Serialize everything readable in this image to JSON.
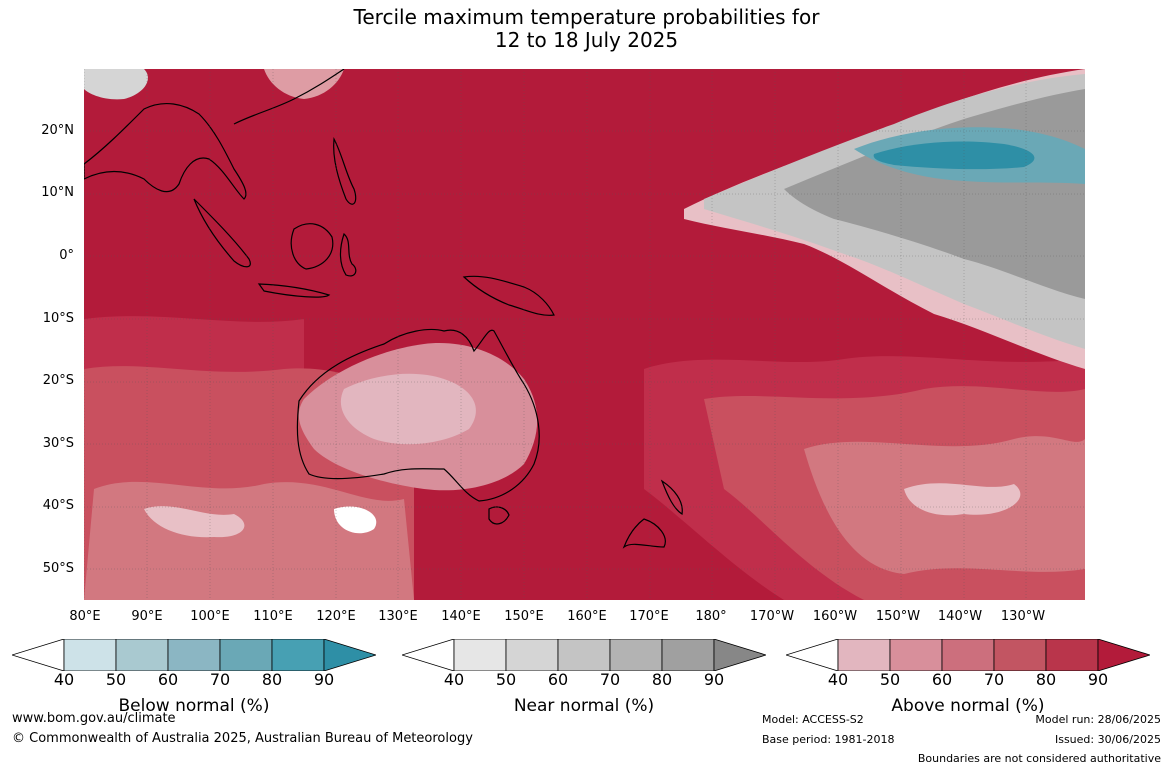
{
  "title": {
    "line1": "Tercile maximum temperature probabilities for",
    "line2": "12 to 18 July 2025"
  },
  "map": {
    "lat_labels": [
      "20°N",
      "10°N",
      "0°",
      "10°S",
      "20°S",
      "30°S",
      "40°S",
      "50°S"
    ],
    "lon_labels": [
      "80°E",
      "90°E",
      "100°E",
      "110°E",
      "120°E",
      "130°E",
      "140°E",
      "150°E",
      "160°E",
      "170°E",
      "180°",
      "170°W",
      "160°W",
      "150°W",
      "140°W",
      "130°W"
    ],
    "colors": {
      "above_90": "#b31b3a",
      "above_80": "#c02e4b",
      "above_70": "#c9505f",
      "above_60": "#d27880",
      "above_50": "#de9ca4",
      "above_40": "#e8c0c6",
      "near": "#9a9a9a",
      "below": "#4aa0b4",
      "land_border": "#000000"
    }
  },
  "colorbars": {
    "below": {
      "label": "Below normal (%)",
      "ticks": [
        "40",
        "50",
        "60",
        "70",
        "80",
        "90"
      ],
      "colors": [
        "#cde2e8",
        "#a9c9d0",
        "#8bb6c3",
        "#6aa8b6",
        "#47a0b3",
        "#2e8fa6"
      ]
    },
    "near": {
      "label": "Near normal (%)",
      "ticks": [
        "40",
        "50",
        "60",
        "70",
        "80",
        "90"
      ],
      "colors": [
        "#e6e6e6",
        "#d5d5d5",
        "#c4c4c4",
        "#b3b3b3",
        "#a0a0a0",
        "#878787"
      ]
    },
    "above": {
      "label": "Above normal (%)",
      "ticks": [
        "40",
        "50",
        "60",
        "70",
        "80",
        "90"
      ],
      "colors": [
        "#e2b6bf",
        "#d88f9b",
        "#cc6f7d",
        "#c25562",
        "#b9354b",
        "#b31b3a"
      ]
    }
  },
  "footer": {
    "website": "www.bom.gov.au/climate",
    "copyright": "© Commonwealth of Australia 2025, Australian Bureau of Meteorology",
    "model": "Model: ACCESS-S2",
    "base_period": "Base period: 1981-2018",
    "model_run": "Model run: 28/06/2025",
    "issued": "Issued: 30/06/2025",
    "disclaimer": "Boundaries are not considered authoritative"
  }
}
